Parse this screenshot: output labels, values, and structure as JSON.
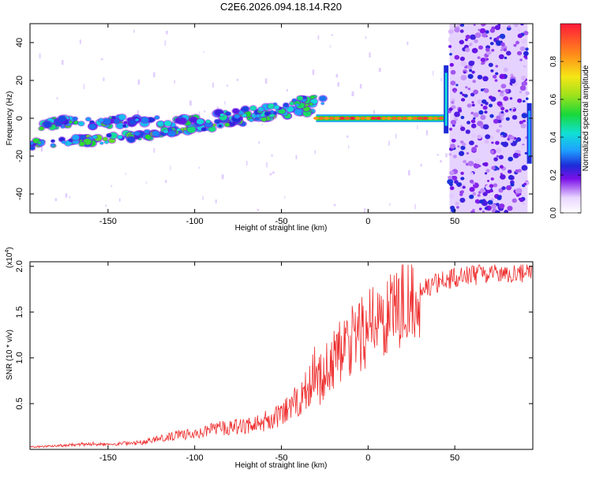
{
  "figure_title": "C2E6.2026.094.18.14.R20",
  "colors": {
    "snr_line": "#ee2b2b",
    "frame": "#000000"
  },
  "chart_data": [
    {
      "type": "heatmap",
      "title": "C2E6.2026.094.18.14.R20",
      "xlabel": "Height of straight line (km)",
      "ylabel": "Frequency (Hz)",
      "xlim": [
        -195,
        95
      ],
      "ylim": [
        -50,
        50
      ],
      "xticks": [
        -150,
        -100,
        -50,
        0,
        50
      ],
      "xtick_labels": [
        "-150",
        "-100",
        "-50",
        "0",
        "50"
      ],
      "yticks": [
        -40,
        -20,
        0,
        20,
        40
      ],
      "ytick_labels": [
        "-40",
        "-20",
        "0",
        "20",
        "40"
      ],
      "colorbar": {
        "label": "Normalized spectral amplitude",
        "range": [
          0.0,
          1.0
        ],
        "ticks": [
          0.0,
          0.2,
          0.4,
          0.6,
          0.8
        ],
        "tick_labels": [
          "0.0",
          "0.2",
          "0.4",
          "0.6",
          "0.8"
        ]
      },
      "features": [
        {
          "name": "lower branch",
          "height_km": [
            -195,
            -170,
            -150,
            -100,
            -50,
            -30
          ],
          "freq_hz": [
            -14,
            -12,
            -11,
            -6,
            3,
            4
          ]
        },
        {
          "name": "upper branch",
          "height_km": [
            -190,
            -150,
            -100,
            -60,
            -40,
            -25
          ],
          "freq_hz": [
            -3,
            -2,
            -1,
            4,
            8,
            10
          ]
        },
        {
          "name": "central line",
          "height_km": [
            -30,
            0,
            20,
            40,
            45
          ],
          "freq_hz": [
            1,
            0,
            0,
            0,
            1
          ]
        },
        {
          "name": "noise region",
          "height_km": [
            47,
            92
          ],
          "freq_hz": [
            -50,
            50
          ]
        }
      ]
    },
    {
      "type": "line",
      "xlabel": "Height of straight line (km)",
      "ylabel": "SNR (10 * v/v)",
      "y_multiplier_label": "(x10",
      "y_multiplier_exponent": "4",
      "y_multiplier_close": ")",
      "xlim": [
        -195,
        95
      ],
      "ylim": [
        0,
        2.05
      ],
      "xticks": [
        -150,
        -100,
        -50,
        0,
        50
      ],
      "xtick_labels": [
        "-150",
        "-100",
        "-50",
        "0",
        "50"
      ],
      "yticks": [
        0.5,
        1.0,
        1.5,
        2.0
      ],
      "ytick_labels": [
        "0.5",
        "1.0",
        "1.5",
        "2.0"
      ],
      "series": [
        {
          "name": "SNR",
          "x": [
            -195,
            -180,
            -170,
            -160,
            -150,
            -140,
            -130,
            -120,
            -110,
            -100,
            -90,
            -80,
            -70,
            -60,
            -50,
            -45,
            -40,
            -35,
            -30,
            -25,
            -20,
            -15,
            -10,
            -5,
            0,
            5,
            10,
            15,
            20,
            25,
            30,
            40,
            50,
            60,
            70,
            80,
            95
          ],
          "y": [
            0.02,
            0.03,
            0.04,
            0.05,
            0.04,
            0.05,
            0.06,
            0.09,
            0.12,
            0.14,
            0.17,
            0.19,
            0.2,
            0.24,
            0.3,
            0.36,
            0.44,
            0.54,
            0.7,
            0.9,
            1.05,
            1.15,
            1.2,
            1.3,
            1.38,
            1.4,
            1.43,
            1.55,
            1.62,
            1.67,
            1.75,
            1.82,
            1.88,
            1.9,
            1.92,
            1.93,
            1.93
          ]
        }
      ]
    }
  ]
}
